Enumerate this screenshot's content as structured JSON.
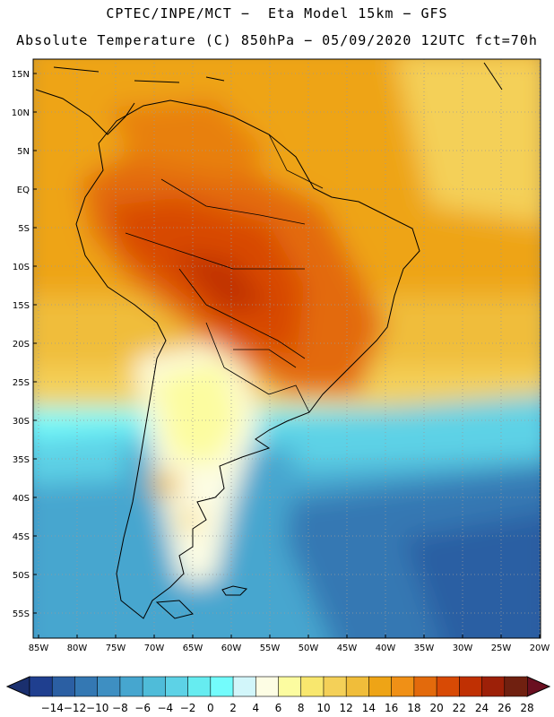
{
  "header": {
    "title_line1": "CPTEC/INPE/MCT −  Eta Model 15km − GFS",
    "title_line2": "Absolute Temperature (C) 850hPa − 05/09/2020 12UTC fct=70h"
  },
  "map": {
    "lat_labels": [
      "15N",
      "10N",
      "5N",
      "EQ",
      "5S",
      "10S",
      "15S",
      "20S",
      "25S",
      "30S",
      "35S",
      "40S",
      "45S",
      "50S",
      "55S"
    ],
    "lon_labels": [
      "85W",
      "80W",
      "75W",
      "70W",
      "65W",
      "60W",
      "55W",
      "50W",
      "45W",
      "40W",
      "35W",
      "30W",
      "25W",
      "20W"
    ]
  },
  "colorbar": {
    "ticks": [
      "−14",
      "−12",
      "−10",
      "−8",
      "−6",
      "−4",
      "−2",
      "0",
      "2",
      "4",
      "6",
      "8",
      "10",
      "12",
      "14",
      "16",
      "18",
      "20",
      "22",
      "24",
      "26",
      "28"
    ],
    "colors": [
      "#1f3f8f",
      "#2b5fa3",
      "#3478b3",
      "#3e8fc2",
      "#46a6cf",
      "#4fbcd9",
      "#5dd2e6",
      "#66ecf0",
      "#73fcfc",
      "#d2f6fa",
      "#fdfde4",
      "#fcfca0",
      "#f8e76e",
      "#f4d058",
      "#f0bd3a",
      "#eea416",
      "#f09016",
      "#e36a0c",
      "#d84a05",
      "#c03003",
      "#9d2008",
      "#702010"
    ]
  }
}
